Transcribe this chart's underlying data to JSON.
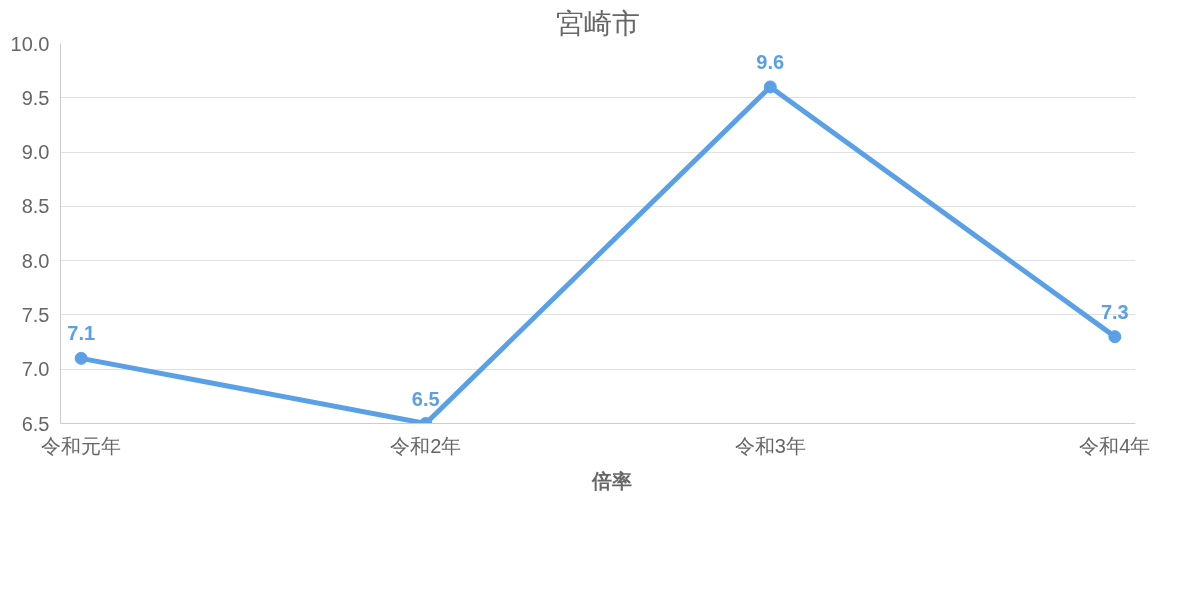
{
  "chart_data": {
    "type": "line",
    "title": "宮崎市",
    "categories": [
      "令和元年",
      "令和2年",
      "令和3年",
      "令和4年"
    ],
    "series": [
      {
        "name": "倍率",
        "color": "#5aa0e6",
        "values": [
          7.1,
          6.5,
          9.6,
          7.3
        ]
      }
    ],
    "ylim": [
      6.5,
      10
    ],
    "yticks": [
      6.5,
      {
        "value": 7,
        "label": "7.0"
      },
      7.5,
      {
        "value": 8,
        "label": "8.0"
      },
      8.5,
      {
        "value": 9,
        "label": "9.0"
      },
      9.5,
      {
        "value": 10,
        "label": "10.0"
      }
    ],
    "grid": "y",
    "legend": "bottom",
    "marker": "circle",
    "line_style": "solid",
    "data_labels": true
  }
}
